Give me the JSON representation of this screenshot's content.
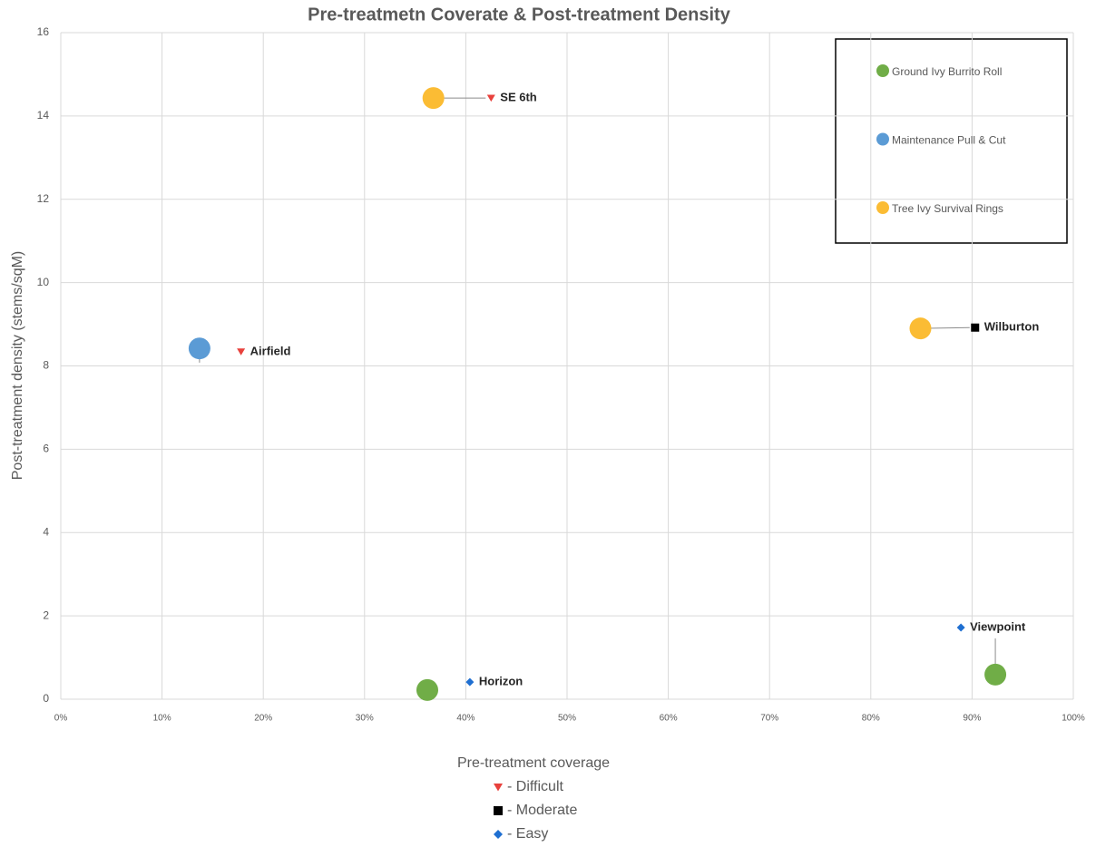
{
  "chart_data": {
    "type": "scatter",
    "title": "Pre-treatmetn Coverate & Post-treatment Density",
    "x_label": "Pre-treatment coverage",
    "y_label": "Post-treatment density (stems/sqM)",
    "xlim": [
      0,
      100
    ],
    "ylim": [
      0,
      16
    ],
    "xticks": [
      {
        "value": 0,
        "label": "0%"
      },
      {
        "value": 10,
        "label": "10%"
      },
      {
        "value": 20,
        "label": "20%"
      },
      {
        "value": 30,
        "label": "30%"
      },
      {
        "value": 40,
        "label": "40%"
      },
      {
        "value": 50,
        "label": "50%"
      },
      {
        "value": 60,
        "label": "60%"
      },
      {
        "value": 70,
        "label": "70%"
      },
      {
        "value": 80,
        "label": "80%"
      },
      {
        "value": 90,
        "label": "90%"
      },
      {
        "value": 100,
        "label": "100%"
      }
    ],
    "yticks": [
      0,
      2,
      4,
      6,
      8,
      10,
      12,
      14,
      16
    ],
    "grid": true,
    "legend": "top-right",
    "series": [
      {
        "name": "Ground Ivy Burrito Roll",
        "color": "#70ad47",
        "x": [
          36.2,
          92.3
        ],
        "values": [
          0.22,
          0.59
        ]
      },
      {
        "name": "Maintenance Pull & Cut",
        "color": "#5b9bd5",
        "x": [
          13.7
        ],
        "values": [
          8.42
        ]
      },
      {
        "name": "Tree Ivy Survival Rings",
        "color": "#fbbc34",
        "x": [
          36.8,
          84.9
        ],
        "values": [
          14.43,
          8.9
        ]
      }
    ],
    "difficulty": [
      {
        "name": "- Difficult",
        "color": "#e8413c",
        "marker": "triangle",
        "labels": [
          "Airfield",
          "SE 6th"
        ],
        "x": [
          17.8,
          42.5
        ],
        "values": [
          8.34,
          14.43
        ]
      },
      {
        "name": "- Moderate",
        "color": "#000000",
        "marker": "square",
        "labels": [
          "Wilburton"
        ],
        "x": [
          90.3
        ],
        "values": [
          8.92
        ]
      },
      {
        "name": "- Easy",
        "color": "#1f6fd1",
        "marker": "diamond",
        "labels": [
          "Horizon",
          "Viewpoint"
        ],
        "x": [
          40.4,
          88.9
        ],
        "values": [
          0.41,
          1.72
        ]
      }
    ]
  }
}
